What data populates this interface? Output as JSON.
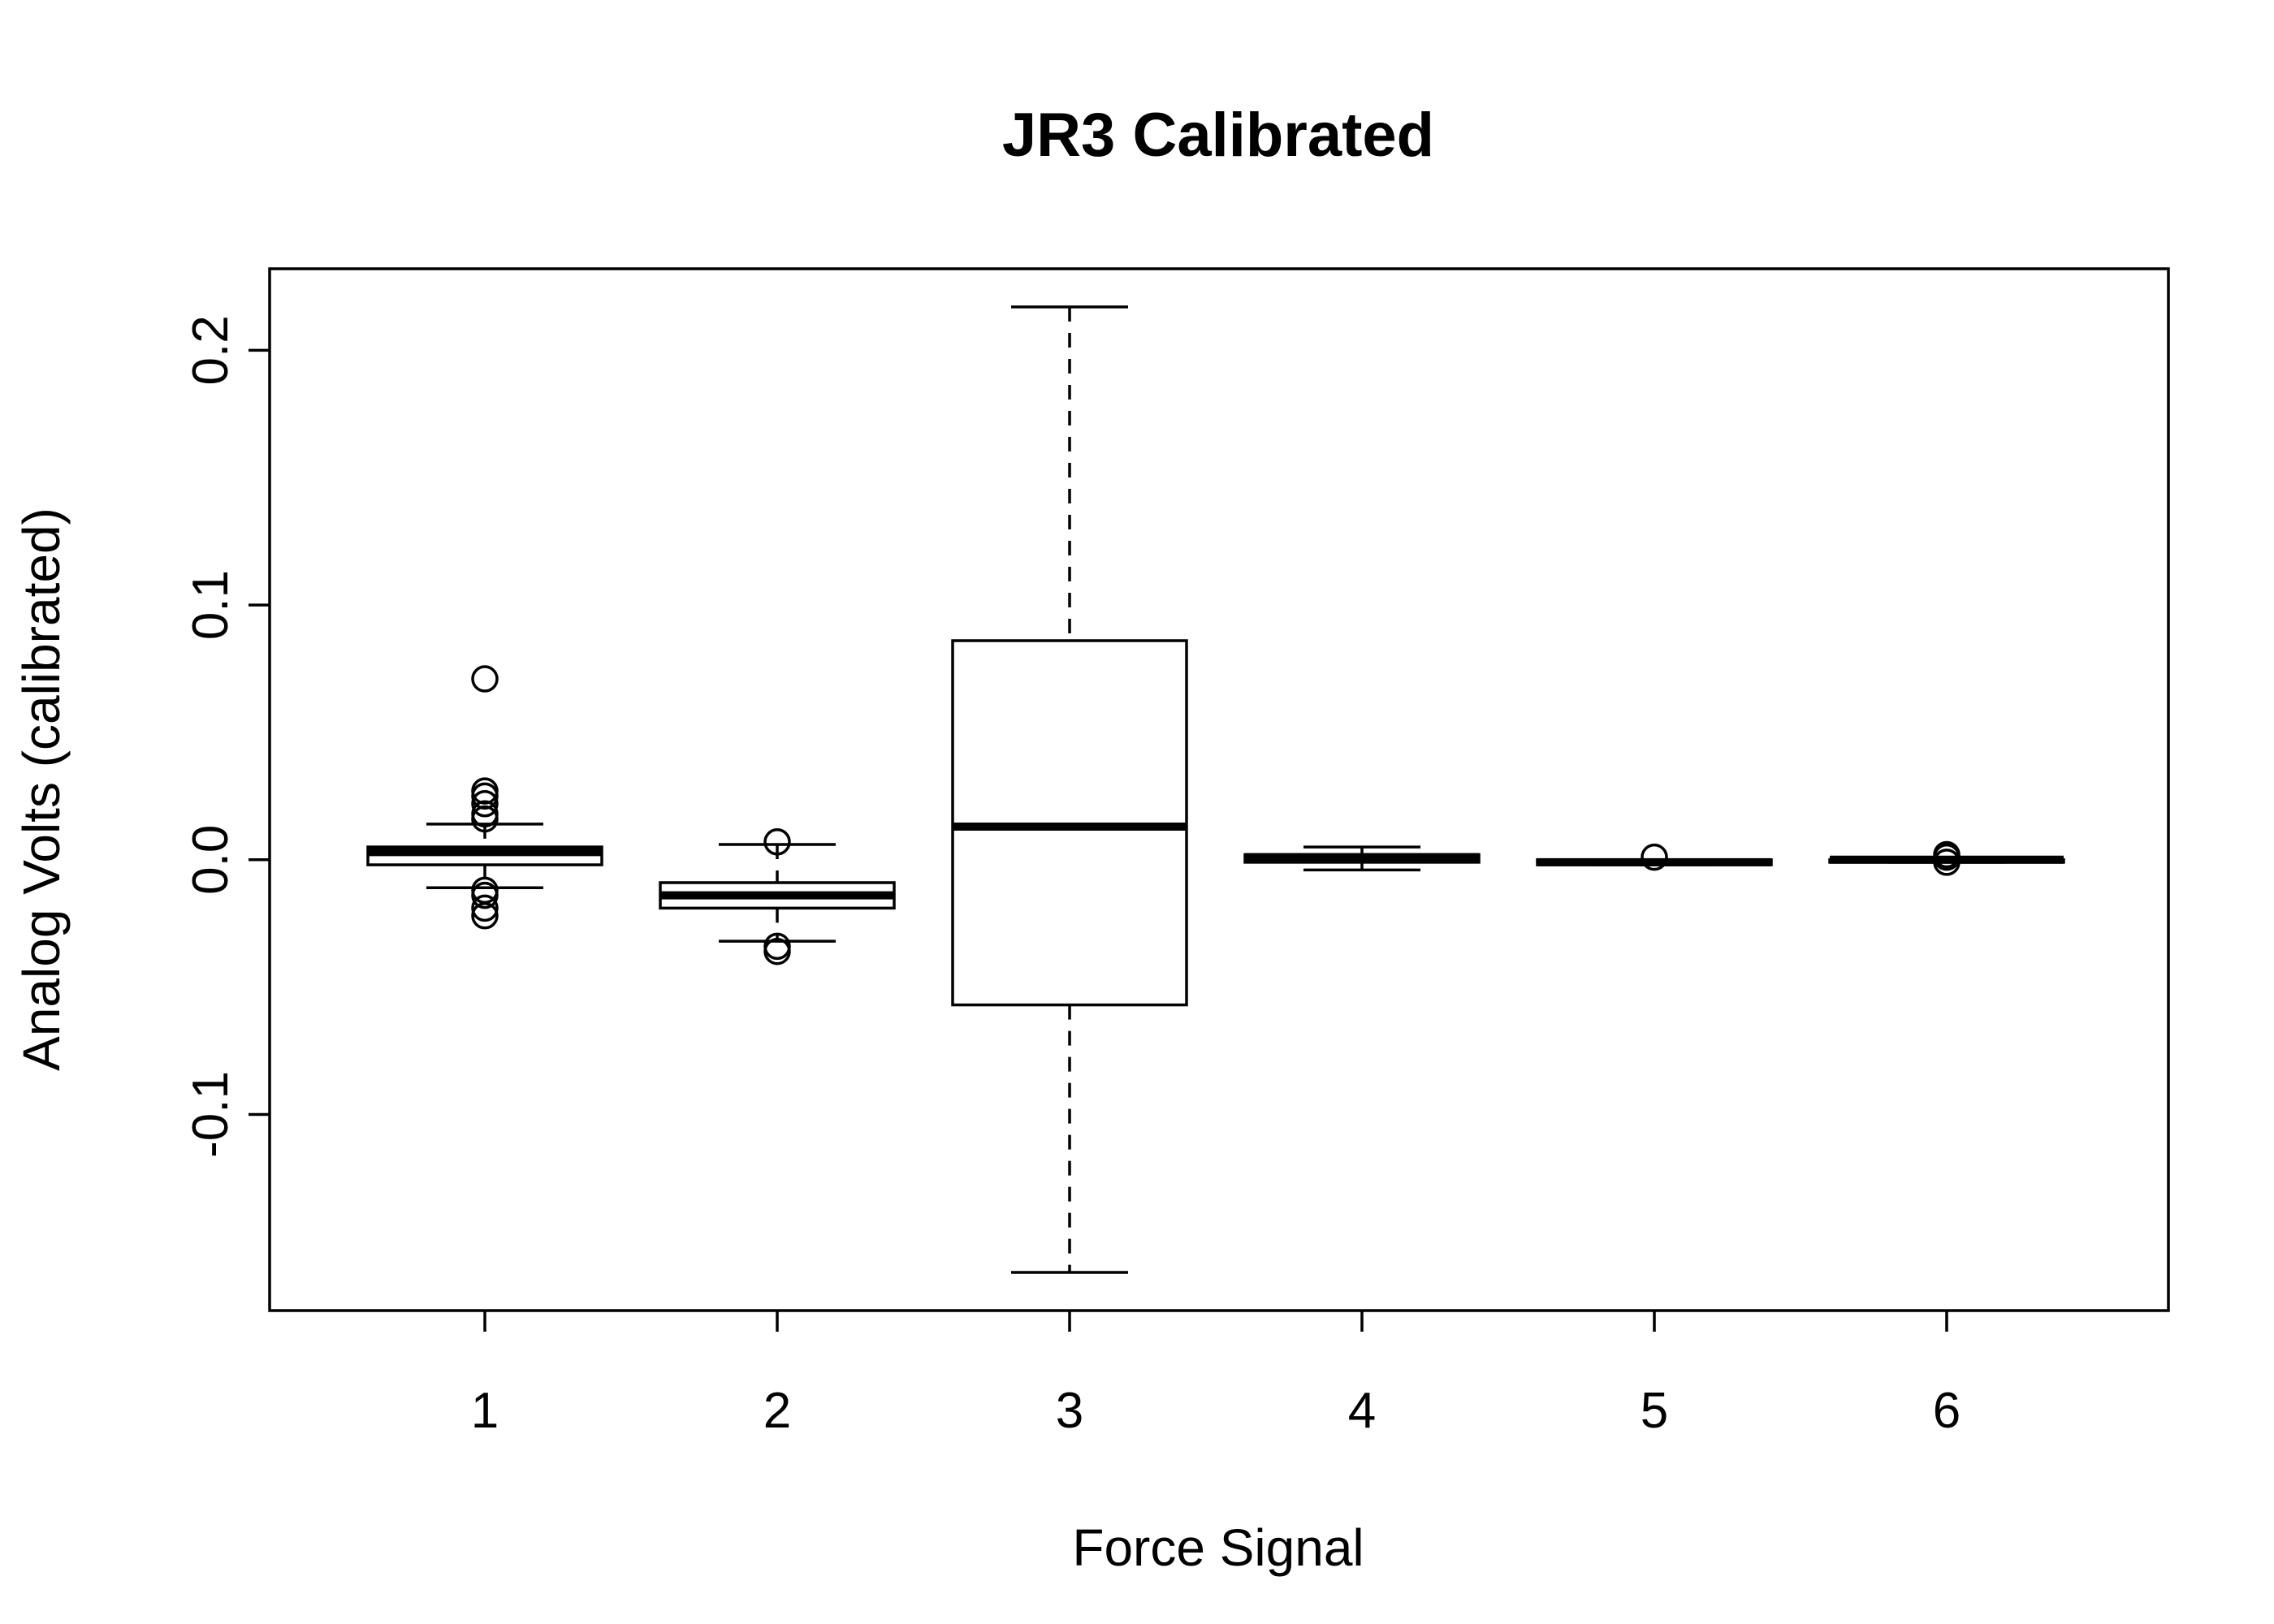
{
  "chart_data": {
    "type": "boxplot",
    "title": "JR3 Calibrated",
    "xlabel": "Force Signal",
    "ylabel": "Analog Volts (calibrated)",
    "ylim": [
      -0.177,
      0.232
    ],
    "y_ticks": [
      -0.1,
      0.0,
      0.1,
      0.2
    ],
    "y_tick_labels": [
      "-0.1",
      "0.0",
      "0.1",
      "0.2"
    ],
    "categories": [
      "1",
      "2",
      "3",
      "4",
      "5",
      "6"
    ],
    "boxes": [
      {
        "category": "1",
        "whisker_low": -0.011,
        "q1": -0.002,
        "median": 0.003,
        "q3": 0.005,
        "whisker_high": 0.014,
        "outliers": [
          0.071,
          0.027,
          0.025,
          0.022,
          0.018,
          0.016,
          -0.012,
          -0.014,
          -0.019,
          -0.022
        ]
      },
      {
        "category": "2",
        "whisker_low": -0.032,
        "q1": -0.019,
        "median": -0.014,
        "q3": -0.009,
        "whisker_high": 0.006,
        "outliers": [
          0.007,
          -0.034,
          -0.036
        ]
      },
      {
        "category": "3",
        "whisker_low": -0.162,
        "q1": -0.057,
        "median": 0.013,
        "q3": 0.086,
        "whisker_high": 0.217,
        "outliers": []
      },
      {
        "category": "4",
        "whisker_low": -0.004,
        "q1": -0.001,
        "median": 0.001,
        "q3": 0.002,
        "whisker_high": 0.005,
        "outliers": []
      },
      {
        "category": "5",
        "whisker_low": -0.002,
        "q1": -0.002,
        "median": -0.001,
        "q3": 0.0,
        "whisker_high": 0.0,
        "outliers": [
          0.001
        ]
      },
      {
        "category": "6",
        "whisker_low": -0.001,
        "q1": -0.001,
        "median": 0.0,
        "q3": 0.0,
        "whisker_high": 0.0,
        "outliers": [
          0.002,
          0.001,
          -0.001
        ]
      }
    ]
  }
}
